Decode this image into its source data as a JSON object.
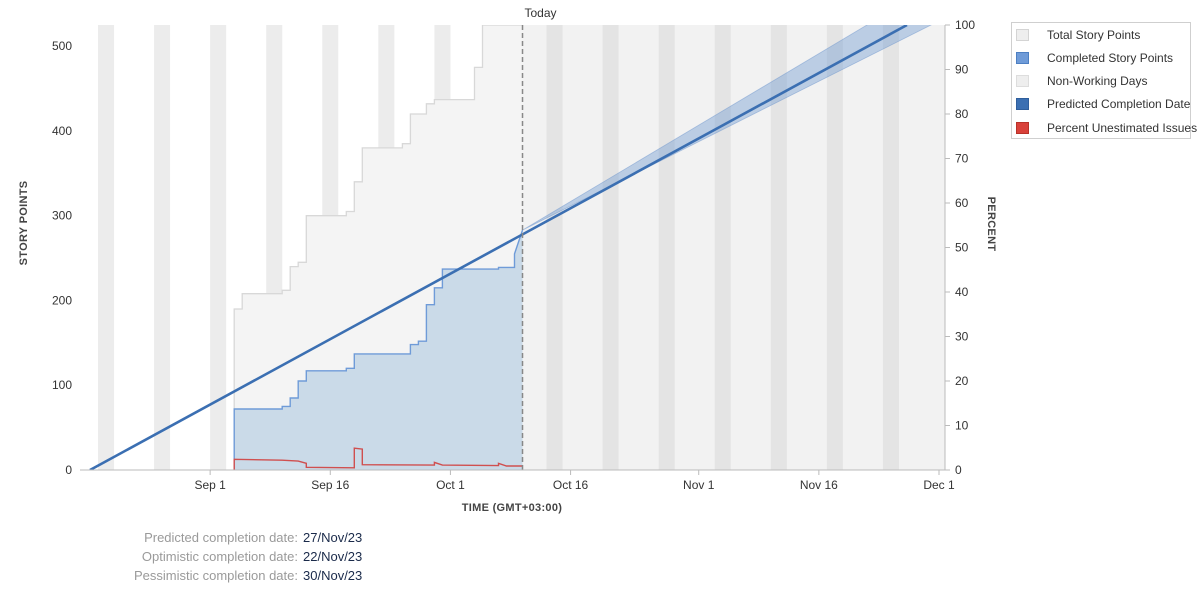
{
  "chart_data": {
    "type": "line",
    "title": "",
    "today_label": "Today",
    "xlabel": "TIME (GMT+03:00)",
    "ylabel": "STORY POINTS",
    "y2label": "PERCENT",
    "x_ticks": [
      "Sep 1",
      "Sep 16",
      "Oct 1",
      "Oct 16",
      "Nov 1",
      "Nov 16",
      "Dec 1"
    ],
    "x_range": [
      "2023-08-17",
      "2023-12-01"
    ],
    "today": "2023-10-10",
    "ylim": [
      0,
      525
    ],
    "y_ticks": [
      0,
      100,
      200,
      300,
      400,
      500
    ],
    "y2lim": [
      0,
      100
    ],
    "y2_ticks": [
      0,
      10,
      20,
      30,
      40,
      50,
      60,
      70,
      80,
      90,
      100
    ],
    "non_working_days": [
      [
        "2023-08-18",
        "2023-08-20"
      ],
      [
        "2023-08-25",
        "2023-08-27"
      ],
      [
        "2023-09-01",
        "2023-09-03"
      ],
      [
        "2023-09-08",
        "2023-09-10"
      ],
      [
        "2023-09-15",
        "2023-09-17"
      ],
      [
        "2023-09-22",
        "2023-09-24"
      ],
      [
        "2023-09-29",
        "2023-10-01"
      ],
      [
        "2023-10-06",
        "2023-10-08"
      ],
      [
        "2023-10-13",
        "2023-10-15"
      ],
      [
        "2023-10-20",
        "2023-10-22"
      ],
      [
        "2023-10-27",
        "2023-10-29"
      ],
      [
        "2023-11-03",
        "2023-11-05"
      ],
      [
        "2023-11-10",
        "2023-11-12"
      ],
      [
        "2023-11-17",
        "2023-11-19"
      ],
      [
        "2023-11-24",
        "2023-11-26"
      ]
    ],
    "series": [
      {
        "name": "Total Story Points",
        "color": "#e0e0e0",
        "points": [
          [
            "2023-09-04",
            0
          ],
          [
            "2023-09-04",
            190
          ],
          [
            "2023-09-05",
            190
          ],
          [
            "2023-09-05",
            208
          ],
          [
            "2023-09-10",
            208
          ],
          [
            "2023-09-10",
            212
          ],
          [
            "2023-09-11",
            212
          ],
          [
            "2023-09-11",
            240
          ],
          [
            "2023-09-12",
            240
          ],
          [
            "2023-09-12",
            245
          ],
          [
            "2023-09-13",
            245
          ],
          [
            "2023-09-13",
            300
          ],
          [
            "2023-09-18",
            300
          ],
          [
            "2023-09-18",
            305
          ],
          [
            "2023-09-19",
            305
          ],
          [
            "2023-09-19",
            340
          ],
          [
            "2023-09-20",
            340
          ],
          [
            "2023-09-20",
            380
          ],
          [
            "2023-09-25",
            380
          ],
          [
            "2023-09-25",
            385
          ],
          [
            "2023-09-26",
            385
          ],
          [
            "2023-09-26",
            420
          ],
          [
            "2023-09-28",
            420
          ],
          [
            "2023-09-28",
            432
          ],
          [
            "2023-09-29",
            432
          ],
          [
            "2023-09-29",
            437
          ],
          [
            "2023-10-04",
            437
          ],
          [
            "2023-10-04",
            475
          ],
          [
            "2023-10-05",
            475
          ],
          [
            "2023-10-05",
            525
          ],
          [
            "2023-10-10",
            525
          ]
        ]
      },
      {
        "name": "Completed Story Points",
        "color": "#5b8fd1",
        "points": [
          [
            "2023-09-04",
            0
          ],
          [
            "2023-09-04",
            72
          ],
          [
            "2023-09-10",
            72
          ],
          [
            "2023-09-10",
            75
          ],
          [
            "2023-09-11",
            75
          ],
          [
            "2023-09-11",
            85
          ],
          [
            "2023-09-12",
            85
          ],
          [
            "2023-09-12",
            105
          ],
          [
            "2023-09-13",
            105
          ],
          [
            "2023-09-13",
            117
          ],
          [
            "2023-09-18",
            117
          ],
          [
            "2023-09-18",
            120
          ],
          [
            "2023-09-19",
            120
          ],
          [
            "2023-09-19",
            137
          ],
          [
            "2023-09-26",
            137
          ],
          [
            "2023-09-26",
            148
          ],
          [
            "2023-09-27",
            148
          ],
          [
            "2023-09-27",
            152
          ],
          [
            "2023-09-28",
            152
          ],
          [
            "2023-09-28",
            195
          ],
          [
            "2023-09-29",
            195
          ],
          [
            "2023-09-29",
            215
          ],
          [
            "2023-09-30",
            215
          ],
          [
            "2023-09-30",
            237
          ],
          [
            "2023-10-07",
            237
          ],
          [
            "2023-10-07",
            239
          ],
          [
            "2023-10-09",
            239
          ],
          [
            "2023-10-09",
            255
          ],
          [
            "2023-10-10",
            283
          ]
        ]
      },
      {
        "name": "Non-Working Days",
        "color": "#e6e6e6",
        "points": []
      },
      {
        "name": "Predicted Completion Date",
        "color": "#3b6fb2",
        "points": [
          [
            "2023-08-17",
            0
          ],
          [
            "2023-11-27",
            525
          ]
        ],
        "band": {
          "start": [
            "2023-10-10",
            283
          ],
          "optimistic": [
            "2023-11-22",
            525
          ],
          "pessimistic": [
            "2023-11-30",
            525
          ]
        }
      },
      {
        "name": "Percent Unestimated Issues",
        "color": "#d04f4f",
        "axis": "percent",
        "points": [
          [
            "2023-09-04",
            0
          ],
          [
            "2023-09-04",
            2.4
          ],
          [
            "2023-09-10",
            2.2
          ],
          [
            "2023-09-12",
            2.0
          ],
          [
            "2023-09-13",
            1.5
          ],
          [
            "2023-09-13",
            0.6
          ],
          [
            "2023-09-19",
            0.5
          ],
          [
            "2023-09-19",
            4.9
          ],
          [
            "2023-09-20",
            4.7
          ],
          [
            "2023-09-20",
            1.2
          ],
          [
            "2023-09-29",
            1.1
          ],
          [
            "2023-09-29",
            1.7
          ],
          [
            "2023-09-30",
            1.1
          ],
          [
            "2023-10-07",
            1.0
          ],
          [
            "2023-10-07",
            1.5
          ],
          [
            "2023-10-08",
            0.9
          ],
          [
            "2023-10-10",
            0.9
          ]
        ]
      }
    ],
    "legend": {
      "placement": "top-right",
      "items": [
        {
          "label": "Total Story Points",
          "color": "#eeeeee",
          "border": "#d4d4d4"
        },
        {
          "label": "Completed Story Points",
          "color": "#6f9bd8",
          "border": "#4d7fc2"
        },
        {
          "label": "Non-Working Days",
          "color": "#eeeeee",
          "border": "#dddddd"
        },
        {
          "label": "Predicted Completion Date",
          "color": "#3b6fb2",
          "border": "#2f5e9c"
        },
        {
          "label": "Percent Unestimated Issues",
          "color": "#d9413a",
          "border": "#b83229"
        }
      ]
    }
  },
  "completion_dates": [
    {
      "label": "Predicted completion date:",
      "value": "27/Nov/23"
    },
    {
      "label": "Optimistic completion date:",
      "value": "22/Nov/23"
    },
    {
      "label": "Pessimistic completion date:",
      "value": "30/Nov/23"
    }
  ]
}
